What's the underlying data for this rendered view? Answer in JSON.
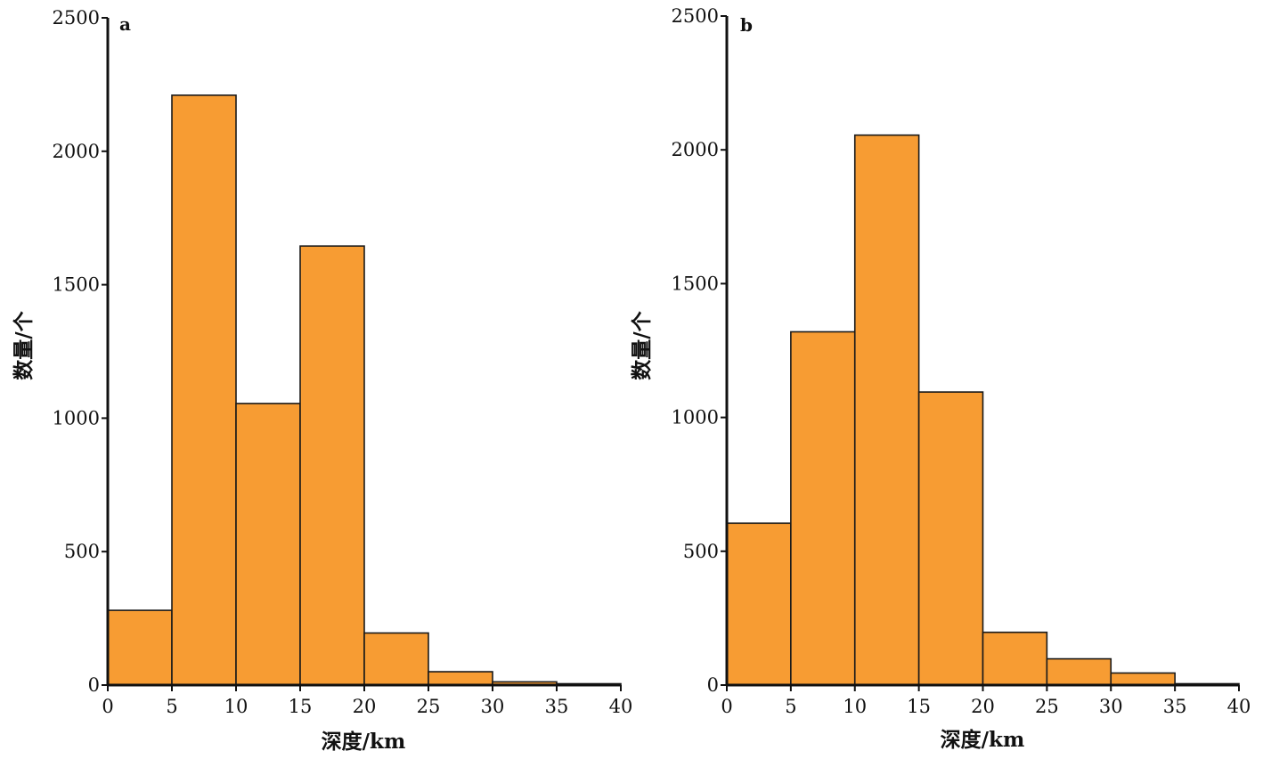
{
  "colors": {
    "bar_fill": "#F79C33",
    "bar_stroke": "#1a1a1a",
    "axis": "#111111"
  },
  "chart_data": [
    {
      "type": "bar",
      "panel": "a",
      "xlabel": "深度/km",
      "ylabel": "数量/个",
      "bin_edges": [
        0,
        5,
        10,
        15,
        20,
        25,
        30,
        35,
        40
      ],
      "values": [
        280,
        2210,
        1055,
        1645,
        195,
        50,
        12,
        5
      ],
      "xlim": [
        0,
        40
      ],
      "ylim": [
        0,
        2500
      ],
      "xticks": [
        0,
        5,
        10,
        15,
        20,
        25,
        30,
        35,
        40
      ],
      "yticks": [
        0,
        500,
        1000,
        1500,
        2000,
        2500
      ],
      "grid": false
    },
    {
      "type": "bar",
      "panel": "b",
      "xlabel": "深度/km",
      "ylabel": "数量/个",
      "bin_edges": [
        0,
        5,
        10,
        15,
        20,
        25,
        30,
        35,
        40
      ],
      "values": [
        605,
        1320,
        2055,
        1095,
        197,
        98,
        45,
        5
      ],
      "xlim": [
        0,
        40
      ],
      "ylim": [
        0,
        2500
      ],
      "xticks": [
        0,
        5,
        10,
        15,
        20,
        25,
        30,
        35,
        40
      ],
      "yticks": [
        0,
        500,
        1000,
        1500,
        2000,
        2500
      ],
      "grid": false
    }
  ]
}
